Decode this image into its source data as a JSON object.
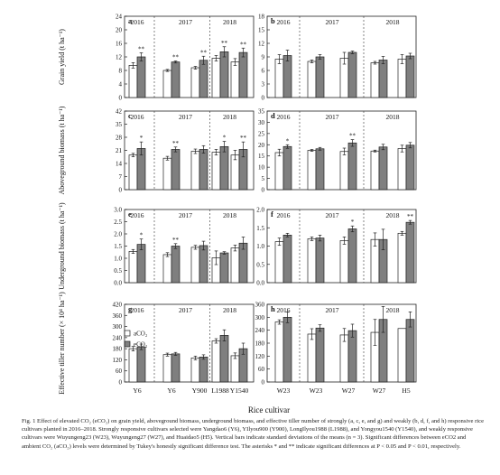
{
  "figure": {
    "legend": [
      {
        "label": "aCO₂",
        "color": "#ffffff"
      },
      {
        "label": "eCO₂",
        "color": "#7f7f7f"
      }
    ],
    "x_axis_title": "Rice cultivar",
    "caption": "Fig. 1   Effect of elevated CO₂ (eCO₂) on grain yield, aboveground biomass, underground biomass, and effective tiller number of strongly (a, c, e, and g) and weakly (b, d, f, and h) responsive rice cultivars planted in 2016–2018. Strongly responsive cultivars selected were Yangdao6 (Y6), YIlyou900 (Y900), LongIlyou1988 (L1988), and Yongyou1540 (Y1540), and weakly responsive cultivars were Wuyungeng23 (W23), Wuyungeng27 (W27), and Huaidao5 (H5). Vertical bars indicate standard deviations of the means (n = 3). Significant differences between eCO2 and ambient CO₂ (aCO₂) levels were determined by Tukey's honestly significant difference test. The asterisks * and ** indicate significant differences at P < 0.05 and P < 0.01, respectively."
  },
  "chart_data": [
    {
      "type": "bar",
      "panel": "a",
      "ylabel": "Grain yield (t ha⁻¹)",
      "ylim": [
        0,
        24
      ],
      "yticks": [
        0,
        4,
        8,
        12,
        16,
        20,
        24
      ],
      "years": [
        "2016",
        "2017",
        "2018"
      ],
      "year_groups": [
        [
          0
        ],
        [
          1,
          2
        ],
        [
          3,
          4
        ]
      ],
      "categories": [
        "Y6",
        "Y6",
        "Y900",
        "L1988",
        "Y1540"
      ],
      "series": [
        {
          "name": "aCO₂",
          "values": [
            9.5,
            8.0,
            8.8,
            11.6,
            10.5
          ],
          "sd": [
            0.8,
            0.3,
            0.4,
            0.8,
            1.0
          ]
        },
        {
          "name": "eCO₂",
          "values": [
            12.0,
            10.5,
            11.0,
            13.5,
            13.3
          ],
          "sd": [
            1.2,
            0.3,
            1.2,
            1.5,
            1.3
          ]
        }
      ],
      "sig": [
        "**",
        "**",
        "**",
        "**",
        "**"
      ]
    },
    {
      "type": "bar",
      "panel": "b",
      "ylabel": "",
      "ylim": [
        0,
        18
      ],
      "yticks": [
        0,
        3,
        6,
        9,
        12,
        15,
        18
      ],
      "years": [
        "2016",
        "2017",
        "2018"
      ],
      "year_groups": [
        [
          0
        ],
        [
          1,
          2
        ],
        [
          3,
          4
        ]
      ],
      "categories": [
        "W23",
        "W23",
        "W27",
        "W27",
        "H5"
      ],
      "series": [
        {
          "name": "aCO₂",
          "values": [
            8.5,
            8.0,
            8.7,
            7.7,
            8.5
          ],
          "sd": [
            1.0,
            0.3,
            1.3,
            0.3,
            1.0
          ]
        },
        {
          "name": "eCO₂",
          "values": [
            9.3,
            9.0,
            10.0,
            8.3,
            9.2
          ],
          "sd": [
            1.2,
            0.5,
            0.3,
            0.8,
            0.6
          ]
        }
      ],
      "sig": [
        "",
        "",
        "",
        "",
        ""
      ]
    },
    {
      "type": "bar",
      "panel": "c",
      "ylabel": "Aboveground biomass (t ha⁻¹)",
      "ylim": [
        0,
        42
      ],
      "yticks": [
        0,
        7,
        14,
        21,
        28,
        35,
        42
      ],
      "years": [
        "2016",
        "2017",
        "2018"
      ],
      "year_groups": [
        [
          0
        ],
        [
          1,
          2
        ],
        [
          3,
          4
        ]
      ],
      "categories": [
        "Y6",
        "Y6",
        "Y900",
        "L1988",
        "Y1540"
      ],
      "series": [
        {
          "name": "aCO₂",
          "values": [
            18.5,
            16.8,
            20.5,
            20.0,
            18.5
          ],
          "sd": [
            0.9,
            1.0,
            1.2,
            1.5,
            2.5
          ]
        },
        {
          "name": "eCO₂",
          "values": [
            22.0,
            21.5,
            21.5,
            23.0,
            21.5
          ],
          "sd": [
            3.5,
            1.3,
            2.0,
            2.8,
            4.0
          ]
        }
      ],
      "sig": [
        "*",
        "**",
        "",
        "*",
        "**"
      ]
    },
    {
      "type": "bar",
      "panel": "d",
      "ylabel": "",
      "ylim": [
        0,
        35
      ],
      "yticks": [
        0,
        5,
        10,
        15,
        20,
        25,
        30,
        35
      ],
      "years": [
        "2016",
        "2017",
        "2018"
      ],
      "year_groups": [
        [
          0
        ],
        [
          1,
          2
        ],
        [
          3,
          4
        ]
      ],
      "categories": [
        "W23",
        "W23",
        "W27",
        "W27",
        "H5"
      ],
      "series": [
        {
          "name": "aCO₂",
          "values": [
            16.5,
            17.5,
            17.0,
            17.2,
            18.3
          ],
          "sd": [
            1.5,
            0.4,
            1.5,
            0.4,
            1.5
          ]
        },
        {
          "name": "eCO₂",
          "values": [
            19.2,
            18.2,
            20.8,
            19.0,
            19.8
          ],
          "sd": [
            0.8,
            0.6,
            1.5,
            1.2,
            1.2
          ]
        }
      ],
      "sig": [
        "*",
        "",
        "**",
        "",
        ""
      ]
    },
    {
      "type": "bar",
      "panel": "e",
      "ylabel": "Underground biomass (t ha⁻¹)",
      "ylim": [
        0,
        3.0
      ],
      "yticks": [
        0,
        0.5,
        1.0,
        1.5,
        2.0,
        2.5,
        3.0
      ],
      "years": [
        "2016",
        "2017",
        "2018"
      ],
      "year_groups": [
        [
          0
        ],
        [
          1,
          2
        ],
        [
          3,
          4
        ]
      ],
      "categories": [
        "Y6",
        "Y6",
        "Y900",
        "L1988",
        "Y1540"
      ],
      "series": [
        {
          "name": "aCO₂",
          "values": [
            1.28,
            1.15,
            1.45,
            1.02,
            1.42
          ],
          "sd": [
            0.08,
            0.08,
            0.08,
            0.28,
            0.12
          ]
        },
        {
          "name": "eCO₂",
          "values": [
            1.57,
            1.5,
            1.52,
            1.22,
            1.62
          ],
          "sd": [
            0.22,
            0.1,
            0.18,
            0.05,
            0.25
          ]
        }
      ],
      "sig": [
        "*",
        "**",
        "",
        "",
        ""
      ]
    },
    {
      "type": "bar",
      "panel": "f",
      "ylabel": "",
      "ylim": [
        0,
        2.0
      ],
      "yticks": [
        0,
        0.5,
        1.0,
        1.5,
        2.0
      ],
      "years": [
        "2016",
        "2017",
        "2018"
      ],
      "year_groups": [
        [
          0
        ],
        [
          1,
          2
        ],
        [
          3,
          4
        ]
      ],
      "categories": [
        "W23",
        "W23",
        "W27",
        "W27",
        "H5"
      ],
      "series": [
        {
          "name": "aCO₂",
          "values": [
            1.12,
            1.2,
            1.15,
            1.18,
            1.35
          ],
          "sd": [
            0.1,
            0.05,
            0.1,
            0.18,
            0.05
          ]
        },
        {
          "name": "eCO₂",
          "values": [
            1.3,
            1.22,
            1.47,
            1.18,
            1.65
          ],
          "sd": [
            0.05,
            0.08,
            0.08,
            0.28,
            0.05
          ]
        }
      ],
      "sig": [
        "",
        "",
        "*",
        "",
        "**"
      ]
    },
    {
      "type": "bar",
      "panel": "g",
      "ylabel": "Effective tiller number (× 10⁴ ha⁻¹)",
      "ylim": [
        0,
        420
      ],
      "yticks": [
        0,
        60,
        120,
        180,
        240,
        300,
        360,
        420
      ],
      "years": [
        "2016",
        "2017",
        "2018"
      ],
      "year_groups": [
        [
          0
        ],
        [
          1,
          2
        ],
        [
          3,
          4
        ]
      ],
      "categories": [
        "Y6",
        "Y6",
        "Y900",
        "L1988",
        "Y1540"
      ],
      "series": [
        {
          "name": "aCO₂",
          "values": [
            180,
            148,
            130,
            222,
            142
          ],
          "sd": [
            12,
            8,
            10,
            12,
            15
          ]
        },
        {
          "name": "eCO₂",
          "values": [
            190,
            152,
            135,
            252,
            180
          ],
          "sd": [
            15,
            8,
            12,
            30,
            30
          ]
        }
      ],
      "sig": [
        "",
        "",
        "",
        "",
        ""
      ]
    },
    {
      "type": "bar",
      "panel": "h",
      "ylabel": "",
      "ylim": [
        0,
        360
      ],
      "yticks": [
        0,
        60,
        120,
        180,
        240,
        300,
        360
      ],
      "years": [
        "2016",
        "2017",
        "2018"
      ],
      "year_groups": [
        [
          0
        ],
        [
          1,
          2
        ],
        [
          3,
          4
        ]
      ],
      "categories": [
        "W23",
        "W23",
        "W27",
        "W27",
        "H5"
      ],
      "series": [
        {
          "name": "aCO₂",
          "values": [
            278,
            222,
            218,
            230,
            248
          ],
          "sd": [
            10,
            25,
            30,
            60,
            0
          ]
        },
        {
          "name": "eCO₂",
          "values": [
            300,
            250,
            238,
            290,
            290
          ],
          "sd": [
            25,
            15,
            30,
            60,
            35
          ]
        }
      ],
      "sig": [
        "",
        "",
        "",
        "",
        ""
      ]
    }
  ]
}
